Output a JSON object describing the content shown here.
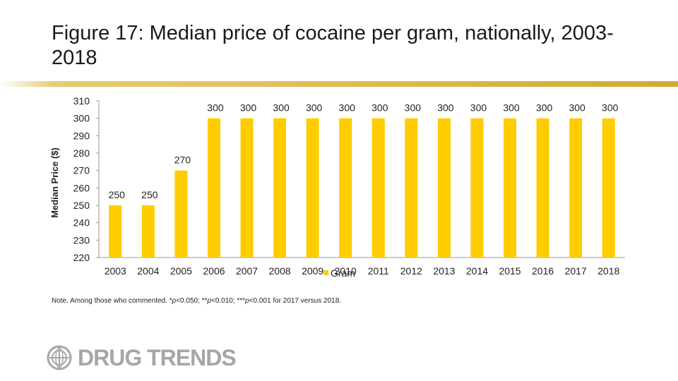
{
  "title": "Figure 17: Median price of cocaine per gram, nationally, 2003-2018",
  "note": {
    "text_1": "Note. Among those who commented. *",
    "p1": "p",
    "text_2": "<0.050; **",
    "p2": "p",
    "text_3": "<0.010; ***",
    "p3": "p",
    "text_4": "<0.001 for 2017 versus 2018."
  },
  "logo": {
    "text": "DRUG TRENDS",
    "icon": "globe-emblem-icon",
    "color": "#a6a6a6"
  },
  "colors": {
    "bar": "#ffcc00",
    "rule": "#e5c45a"
  },
  "chart_data": {
    "type": "bar",
    "categories": [
      "2003",
      "2004",
      "2005",
      "2006",
      "2007",
      "2008",
      "2009",
      "2010",
      "2011",
      "2012",
      "2013",
      "2014",
      "2015",
      "2016",
      "2017",
      "2018"
    ],
    "series": [
      {
        "name": "Gram",
        "values": [
          250,
          250,
          270,
          300,
          300,
          300,
          300,
          300,
          300,
          300,
          300,
          300,
          300,
          300,
          300,
          300
        ]
      }
    ],
    "data_labels": [
      "250",
      "250",
      "270",
      "300",
      "300",
      "300",
      "300",
      "300",
      "300",
      "300",
      "300",
      "300",
      "300",
      "300",
      "300",
      "300"
    ],
    "ylabel": "Median Price ($)",
    "xlabel": "",
    "ylim": [
      220,
      310
    ],
    "yticks": [
      "220",
      "230",
      "240",
      "250",
      "260",
      "270",
      "280",
      "290",
      "300",
      "310"
    ],
    "grid": false,
    "legend_position": "bottom"
  }
}
